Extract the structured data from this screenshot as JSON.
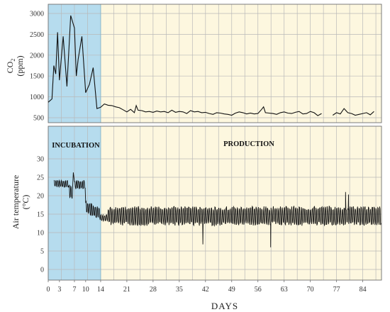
{
  "colors": {
    "incubation_band": "#b6dcee",
    "production_band": "#fdf7df",
    "line": "#111111",
    "grid": "#b9b9b9"
  },
  "chart_data": [
    {
      "type": "line",
      "panel": "top",
      "ylabel_main": "CO",
      "ylabel_sub": "2",
      "ylabel_unit": "(ppm)",
      "xlim": [
        0,
        89
      ],
      "ylim": [
        500,
        3000
      ],
      "yticks": [
        500,
        1000,
        1500,
        2000,
        2500,
        3000
      ],
      "grid": true,
      "phases": [
        {
          "name": "incubation",
          "start": 0,
          "end": 14
        },
        {
          "name": "production",
          "start": 14,
          "end": 89
        }
      ],
      "series": [
        {
          "x": [
            0,
            1,
            1.5,
            2,
            2.5,
            3,
            4,
            5,
            6,
            7,
            7.5,
            8,
            9,
            10,
            11,
            12,
            13,
            14,
            15,
            16,
            17,
            18,
            19,
            20,
            21,
            22,
            23,
            23.5,
            24,
            25,
            26,
            27,
            28,
            29,
            30,
            31,
            32,
            33,
            34,
            35,
            36,
            37,
            38,
            39,
            40,
            41,
            42,
            43,
            44,
            45,
            46,
            47,
            48,
            49,
            50,
            51,
            52,
            53,
            54,
            55,
            56,
            57,
            57.5,
            58,
            59,
            60,
            61,
            62,
            63,
            64,
            65,
            66,
            67,
            68,
            69,
            70,
            71,
            72,
            73
          ],
          "y": [
            870,
            950,
            1750,
            1550,
            2550,
            1400,
            2450,
            1250,
            2950,
            2650,
            1500,
            1900,
            2450,
            1100,
            1300,
            1700,
            720,
            750,
            830,
            800,
            790,
            760,
            740,
            690,
            640,
            700,
            620,
            790,
            680,
            670,
            640,
            650,
            630,
            660,
            640,
            650,
            620,
            680,
            630,
            650,
            640,
            600,
            670,
            640,
            650,
            620,
            630,
            600,
            580,
            620,
            610,
            590,
            580,
            560,
            610,
            640,
            620,
            590,
            610,
            590,
            600,
            700,
            760,
            620,
            610,
            600,
            580,
            620,
            640,
            610,
            600,
            630,
            650,
            590,
            600,
            650,
            620,
            550,
            600
          ]
        },
        {
          "x": [
            76,
            77,
            78,
            79,
            80,
            81,
            82,
            83,
            84,
            85,
            86,
            87
          ],
          "y": [
            560,
            620,
            590,
            720,
            620,
            600,
            560,
            580,
            600,
            620,
            570,
            650
          ]
        }
      ]
    },
    {
      "type": "line",
      "panel": "bottom",
      "ylabel_main": "Air temperature",
      "ylabel_unit": "(°C)",
      "xlabel": "DAYS",
      "xlim": [
        0,
        89
      ],
      "ylim": [
        0,
        30
      ],
      "yticks": [
        0,
        5,
        10,
        15,
        20,
        25,
        30
      ],
      "xticks": [
        0,
        3,
        7,
        10,
        14,
        21,
        28,
        35,
        42,
        49,
        56,
        63,
        70,
        77,
        84
      ],
      "grid": true,
      "phase_labels": [
        "INCUBATION",
        "PRODUCTION"
      ],
      "phases": [
        {
          "name": "INCUBATION",
          "start": 0,
          "end": 14
        },
        {
          "name": "PRODUCTION",
          "start": 14,
          "end": 89
        }
      ],
      "series": [
        {
          "generator": "daily_cycle",
          "segments": [
            {
              "start": 1.5,
              "end": 5.5,
              "base": 23.3,
              "amp": 0.9,
              "period": 0.5
            },
            {
              "start": 5.5,
              "end": 6.5,
              "base": 21.0,
              "amp": 1.8,
              "period": 0.5
            },
            {
              "start": 7.0,
              "end": 10.0,
              "base": 23.0,
              "amp": 1.1,
              "period": 0.5
            },
            {
              "start": 10.0,
              "end": 14.0,
              "base": 17.0,
              "amp": 1.5,
              "period": 0.5,
              "trend_to": 15.0
            },
            {
              "start": 14.0,
              "end": 16.0,
              "base": 14.0,
              "amp": 0.8,
              "period": 0.5
            },
            {
              "start": 16.0,
              "end": 89.0,
              "base": 14.5,
              "amp": 2.4,
              "period": 0.5
            }
          ],
          "spikes": [
            {
              "x": 6.7,
              "y": 26.3
            },
            {
              "x": 41.3,
              "y": 6.8
            },
            {
              "x": 59.4,
              "y": 6.0
            },
            {
              "x": 79.4,
              "y": 21.0
            },
            {
              "x": 80.2,
              "y": 20.3
            }
          ]
        }
      ]
    }
  ]
}
